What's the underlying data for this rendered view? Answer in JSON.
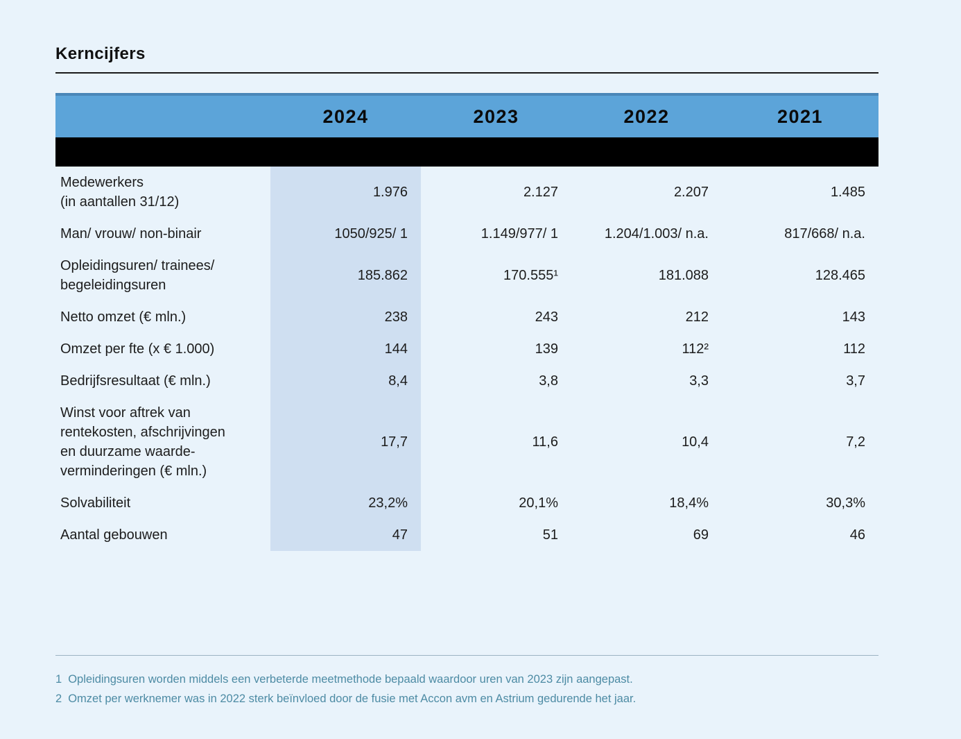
{
  "page": {
    "title": "Kerncijfers"
  },
  "table": {
    "years": [
      "2024",
      "2023",
      "2022",
      "2021"
    ],
    "highlighted_year": "2024",
    "rows": [
      {
        "label": "Medewerkers\n(in aantallen 31/12)",
        "values": [
          "1.976",
          "2.127",
          "2.207",
          "1.485"
        ]
      },
      {
        "label": "Man/ vrouw/ non-binair",
        "values": [
          "1050/925/ 1",
          "1.149/977/ 1",
          "1.204/1.003/ n.a.",
          "817/668/ n.a."
        ]
      },
      {
        "label": "Opleidingsuren/ trainees/\nbegeleidingsuren",
        "values": [
          "185.862",
          "170.555¹",
          "181.088",
          "128.465"
        ]
      },
      {
        "label": "Netto omzet (€ mln.)",
        "values": [
          "238",
          "243",
          "212",
          "143"
        ]
      },
      {
        "label": "Omzet per fte (x € 1.000)",
        "values": [
          "144",
          "139",
          "112²",
          "112"
        ]
      },
      {
        "label": "Bedrijfsresultaat (€ mln.)",
        "values": [
          "8,4",
          "3,8",
          "3,3",
          "3,7"
        ]
      },
      {
        "label": "Winst voor aftrek van\nrentekosten, afschrijvingen\nen duurzame waarde-\nverminderingen (€ mln.)",
        "values": [
          "17,7",
          "11,6",
          "10,4",
          "7,2"
        ]
      },
      {
        "label": "Solvabiliteit",
        "values": [
          "23,2%",
          "20,1%",
          "18,4%",
          "30,3%"
        ]
      },
      {
        "label": "Aantal gebouwen",
        "values": [
          "47",
          "51",
          "69",
          "46"
        ]
      }
    ]
  },
  "footnotes": [
    {
      "num": "1",
      "text": "Opleidingsuren worden middels een verbeterde meetmethode bepaald waardoor uren van 2023 zijn aangepast."
    },
    {
      "num": "2",
      "text": "Omzet per werknemer was in 2022 sterk beïnvloed door de fusie met Accon avm en Astrium gedurende het jaar."
    }
  ],
  "colors": {
    "background": "#e9f3fb",
    "header_blue": "#5ca4d9",
    "header_top_edge": "#4a87b8",
    "black_bar": "#000000",
    "column_highlight": "#cfdff1",
    "footnote_text": "#4d8ba4"
  }
}
